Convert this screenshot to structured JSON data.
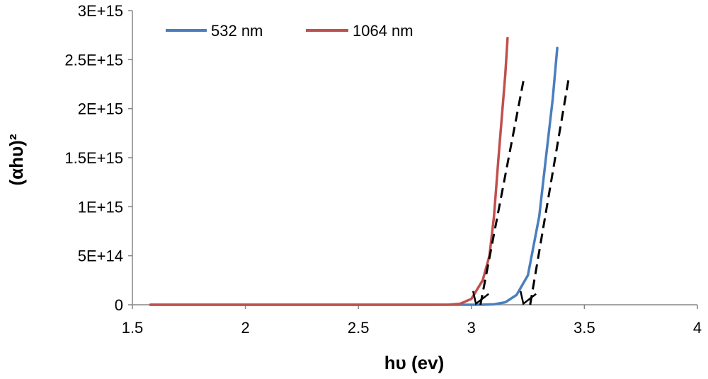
{
  "chart_data": {
    "type": "line",
    "title": "",
    "xlabel": "hυ (ev)",
    "ylabel": "(αhυ)²",
    "xlim": [
      1.5,
      4
    ],
    "ylim": [
      0,
      3000000000000000.0
    ],
    "x_ticks": [
      1.5,
      2,
      2.5,
      3,
      3.5,
      4
    ],
    "x_tick_labels": [
      "1.5",
      "2",
      "2.5",
      "3",
      "3.5",
      "4"
    ],
    "y_ticks": [
      0,
      500000000000000.0,
      1000000000000000.0,
      1500000000000000.0,
      2000000000000000.0,
      2500000000000000.0,
      3000000000000000.0
    ],
    "y_tick_labels": [
      "0",
      "5E+14",
      "1E+15",
      "1.5E+15",
      "2E+15",
      "2.5E+15",
      "3E+15"
    ],
    "grid": false,
    "legend_position": "top-left",
    "series": [
      {
        "name": "532 nm",
        "color": "#4a7ebf",
        "x": [
          1.58,
          2.0,
          2.5,
          3.0,
          3.05,
          3.1,
          3.15,
          3.2,
          3.25,
          3.3,
          3.33,
          3.36,
          3.38
        ],
        "y": [
          0,
          0,
          0,
          0,
          1000000000000.0,
          4000000000000.0,
          25000000000000.0,
          100000000000000.0,
          300000000000000.0,
          900000000000000.0,
          1500000000000000.0,
          2100000000000000.0,
          2620000000000000.0
        ]
      },
      {
        "name": "1064 nm",
        "color": "#c0504d",
        "x": [
          1.58,
          2.0,
          2.5,
          2.8,
          2.9,
          2.95,
          3.0,
          3.05,
          3.08,
          3.1,
          3.12,
          3.15,
          3.16
        ],
        "y": [
          0,
          0,
          0,
          0,
          1000000000000.0,
          10000000000000.0,
          60000000000000.0,
          250000000000000.0,
          500000000000000.0,
          900000000000000.0,
          1500000000000000.0,
          2350000000000000.0,
          2720000000000000.0
        ]
      }
    ],
    "annotations": [
      {
        "type": "dashed-tangent",
        "x": [
          3.04,
          3.23
        ],
        "y": [
          0,
          2280000000000000.0
        ],
        "arrow_tip": [
          3.02,
          10000000000000.0
        ]
      },
      {
        "type": "dashed-tangent",
        "x": [
          3.26,
          3.43
        ],
        "y": [
          0,
          2300000000000000.0
        ],
        "arrow_tip": [
          3.23,
          10000000000000.0
        ]
      }
    ]
  }
}
